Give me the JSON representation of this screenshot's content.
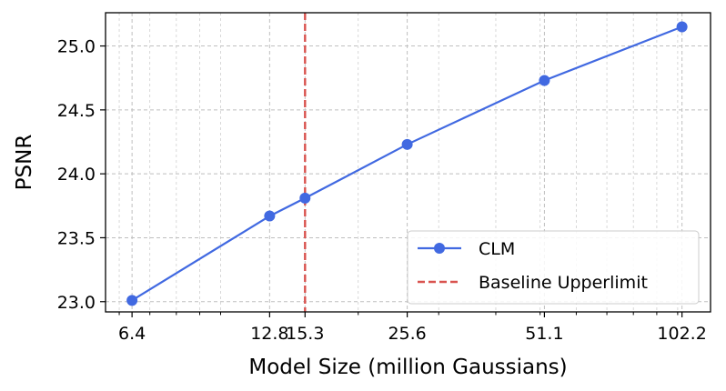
{
  "chart_data": {
    "type": "line",
    "xscale": "log2",
    "xlabel": "Model Size (million Gaussians)",
    "ylabel": "PSNR",
    "xlim": [
      5.6,
      118
    ],
    "ylim": [
      22.92,
      25.26
    ],
    "xticks": [
      6.4,
      12.8,
      15.3,
      25.6,
      51.1,
      102.2
    ],
    "xtick_labels": [
      "6.4",
      "12.8",
      "15.3",
      "25.6",
      "51.1",
      "102.2"
    ],
    "yticks": [
      23.0,
      23.5,
      24.0,
      24.5,
      25.0
    ],
    "ytick_labels": [
      "23.0",
      "23.5",
      "24.0",
      "24.5",
      "25.0"
    ],
    "grid": true,
    "legend_position": "lower-right",
    "series": [
      {
        "name": "CLM",
        "color": "#4169E1",
        "marker": "circle",
        "x": [
          6.4,
          12.8,
          15.3,
          25.6,
          51.1,
          102.2
        ],
        "y": [
          23.01,
          23.67,
          23.81,
          24.23,
          24.73,
          25.15
        ]
      }
    ],
    "reference_lines": [
      {
        "name": "Baseline Upperlimit",
        "orientation": "vertical",
        "x": 15.3,
        "color": "#D9534F",
        "style": "dashed"
      }
    ]
  }
}
